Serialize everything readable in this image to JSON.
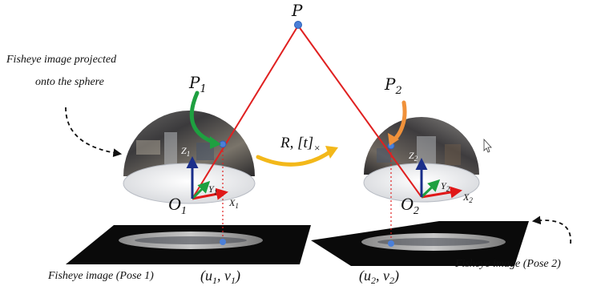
{
  "diagram": {
    "point_label": "P",
    "caption_projection_line1": "Fisheye image projected",
    "caption_projection_line2": "onto the sphere",
    "transform_label": "R, [t]",
    "transform_sub": "×",
    "left": {
      "point": "P",
      "point_sub": "1",
      "origin": "O",
      "origin_sub": "1",
      "x_axis": "X",
      "x_sub": "1",
      "y_axis": "Y",
      "y_sub": "1",
      "z_axis": "Z",
      "z_sub": "1",
      "pixel_open": "(u",
      "pixel_sub1": "1",
      "pixel_mid": ", v",
      "pixel_sub2": "1",
      "pixel_close": ")",
      "caption": "Fisheye image (Pose 1)"
    },
    "right": {
      "point": "P",
      "point_sub": "2",
      "origin": "O",
      "origin_sub": "2",
      "x_axis": "X",
      "x_sub": "2",
      "y_axis": "Y",
      "y_sub": "2",
      "z_axis": "Z",
      "z_sub": "2",
      "pixel_open": "(u",
      "pixel_sub1": "2",
      "pixel_mid": ", v",
      "pixel_sub2": "2",
      "pixel_close": ")",
      "caption": "Fisheye image (Pose 2)"
    },
    "colors": {
      "ray": "#e02020",
      "x_axis": "#e01818",
      "y_axis": "#1ea040",
      "z_axis": "#1a2e8a",
      "point": "#4a7fd8",
      "arrow_left": "#1ea040",
      "arrow_right": "#f0913a",
      "transform_arrow": "#f3b81a",
      "plane": "#0a0a0a"
    }
  }
}
